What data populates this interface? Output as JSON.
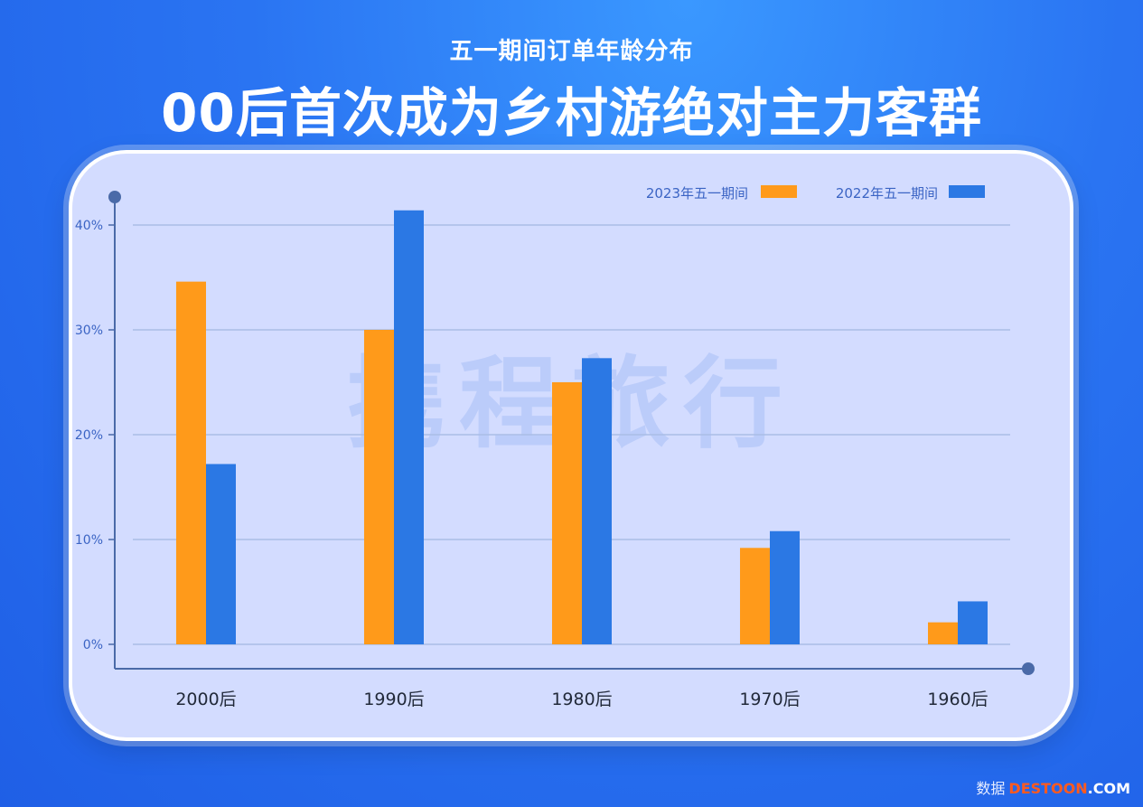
{
  "header": {
    "subtitle": "五一期间订单年龄分布",
    "title": "00后首次成为乡村游绝对主力客群"
  },
  "chart_data": {
    "type": "bar",
    "categories": [
      "2000后",
      "1990后",
      "1980后",
      "1970后",
      "1960后"
    ],
    "series": [
      {
        "name": "2023年五一期间",
        "color": "#ff9a1a",
        "values": [
          34.6,
          30.0,
          25.0,
          9.2,
          2.1
        ]
      },
      {
        "name": "2022年五一期间",
        "color": "#2b78e4",
        "values": [
          17.2,
          41.4,
          27.3,
          10.8,
          4.1
        ]
      }
    ],
    "ylim": [
      0,
      40
    ],
    "yticks": [
      0,
      10,
      20,
      30,
      40
    ],
    "ytick_labels": [
      "0%",
      "10%",
      "20%",
      "30%",
      "40%"
    ],
    "grid": true,
    "legend_position": "top-right",
    "watermark": "携程旅行"
  },
  "footer": {
    "prefix": "数据",
    "brand": "DESTOON",
    "suffix": ".COM"
  }
}
